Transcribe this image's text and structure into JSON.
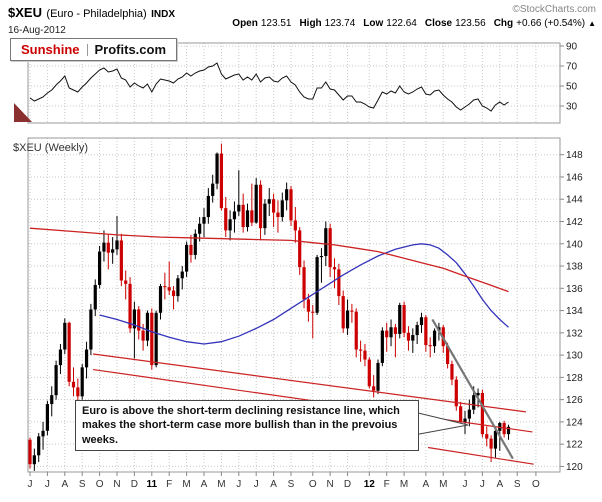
{
  "header": {
    "symbol": "$XEU",
    "name": "(Euro - Philadelphia)",
    "exchange": "INDX",
    "date": "16-Aug-2012",
    "copyright": "©StockCharts.com",
    "stats": [
      {
        "label": "Open",
        "value": "123.51"
      },
      {
        "label": "High",
        "value": "123.74"
      },
      {
        "label": "Low",
        "value": "122.64"
      },
      {
        "label": "Close",
        "value": "123.56"
      },
      {
        "label": "Chg",
        "value": "+0.66 (+0.54%)"
      }
    ],
    "change_arrow": "▲"
  },
  "logo": {
    "part1": "Sunshine",
    "part2": "Profits.com"
  },
  "annotation": {
    "text": "Euro is above the short-term declining resistance line, which makes the short-term case more bullish than in the prevoius weeks."
  },
  "colors": {
    "accent_red": "#cc0000",
    "ma_blue": "#3333bb",
    "ma_red": "#cc2222",
    "trend_gray": "#777777",
    "grid": "#c8c8c8",
    "panel_border": "#999999",
    "rsi_line": "#111111",
    "marker_maroon": "#8b3030"
  },
  "chart_data": [
    {
      "name": "indicator_panel",
      "type": "line",
      "ylim": [
        13,
        93
      ],
      "yticks": [
        90,
        70,
        50,
        30
      ],
      "line_color": "#111111",
      "marker": {
        "shape": "triangle",
        "color": "#8b3030",
        "position": "bottom-left"
      },
      "values": [
        38,
        35,
        37,
        39,
        43,
        46,
        51,
        55,
        60,
        48,
        46,
        44,
        49,
        53,
        58,
        62,
        66,
        68,
        64,
        65,
        67,
        58,
        56,
        49,
        53,
        50,
        48,
        52,
        44,
        52,
        57,
        56,
        55,
        53,
        57,
        59,
        63,
        60,
        63,
        65,
        66,
        69,
        70,
        73,
        62,
        57,
        59,
        61,
        62,
        56,
        59,
        56,
        62,
        54,
        58,
        59,
        55,
        54,
        58,
        60,
        54,
        51,
        44,
        39,
        37,
        37,
        48,
        48,
        54,
        47,
        46,
        41,
        36,
        40,
        40,
        34,
        34,
        32,
        29,
        28,
        36,
        44,
        42,
        45,
        43,
        50,
        44,
        42,
        44,
        47,
        49,
        42,
        41,
        45,
        46,
        41,
        37,
        34,
        29,
        26,
        29,
        32,
        36,
        37,
        30,
        28,
        25,
        31,
        34,
        31,
        34
      ]
    },
    {
      "name": "price_panel",
      "type": "candlestick",
      "title": "$XEU (Weekly)",
      "ylim": [
        119.5,
        149.5
      ],
      "yticks": [
        148,
        146,
        144,
        142,
        140,
        138,
        136,
        134,
        132,
        130,
        128,
        126,
        124,
        122,
        120
      ],
      "up_color": "#000000",
      "down_color": "#cc0000",
      "candles": [
        [
          122.4,
          122.6,
          119.8,
          120.2
        ],
        [
          120.2,
          121.6,
          119.6,
          121.0
        ],
        [
          121.0,
          123.0,
          120.4,
          122.7
        ],
        [
          122.7,
          124.0,
          121.5,
          123.2
        ],
        [
          123.2,
          125.9,
          122.8,
          125.6
        ],
        [
          125.6,
          127.2,
          124.5,
          126.4
        ],
        [
          126.4,
          129.5,
          126.0,
          129.1
        ],
        [
          129.1,
          131.0,
          128.3,
          130.5
        ],
        [
          130.5,
          133.3,
          130.1,
          132.9
        ],
        [
          132.9,
          133.0,
          127.2,
          127.6
        ],
        [
          127.6,
          128.9,
          126.3,
          127.1
        ],
        [
          127.1,
          127.9,
          125.8,
          126.3
        ],
        [
          126.3,
          129.2,
          126.0,
          128.9
        ],
        [
          128.9,
          131.2,
          127.9,
          130.5
        ],
        [
          130.5,
          134.6,
          130.0,
          134.1
        ],
        [
          134.1,
          136.8,
          133.5,
          136.3
        ],
        [
          136.3,
          139.8,
          136.0,
          139.3
        ],
        [
          139.3,
          141.2,
          138.4,
          140.1
        ],
        [
          140.1,
          140.8,
          137.7,
          139.2
        ],
        [
          139.2,
          140.6,
          138.2,
          139.5
        ],
        [
          139.5,
          142.5,
          139.0,
          140.3
        ],
        [
          140.3,
          140.9,
          136.2,
          136.7
        ],
        [
          136.7,
          137.6,
          135.0,
          136.4
        ],
        [
          136.4,
          137.0,
          132.0,
          132.4
        ],
        [
          132.4,
          134.8,
          129.7,
          134.1
        ],
        [
          134.1,
          134.4,
          131.4,
          132.2
        ],
        [
          132.2,
          132.8,
          130.4,
          131.3
        ],
        [
          131.3,
          134.0,
          130.8,
          133.8
        ],
        [
          133.8,
          134.2,
          128.7,
          129.1
        ],
        [
          129.1,
          134.0,
          128.9,
          133.8
        ],
        [
          133.8,
          136.4,
          133.2,
          136.2
        ],
        [
          136.2,
          137.4,
          135.0,
          136.1
        ],
        [
          136.1,
          138.4,
          135.4,
          135.8
        ],
        [
          135.8,
          136.2,
          134.1,
          135.3
        ],
        [
          135.3,
          137.2,
          134.8,
          136.9
        ],
        [
          136.9,
          138.0,
          135.9,
          137.5
        ],
        [
          137.5,
          140.2,
          137.0,
          139.9
        ],
        [
          139.9,
          140.8,
          138.3,
          139.0
        ],
        [
          139.0,
          141.3,
          138.6,
          140.9
        ],
        [
          140.9,
          142.4,
          140.2,
          141.8
        ],
        [
          141.8,
          143.2,
          140.6,
          142.4
        ],
        [
          142.4,
          145.0,
          141.8,
          144.3
        ],
        [
          144.3,
          146.2,
          143.7,
          145.4
        ],
        [
          145.4,
          148.2,
          144.9,
          148.1
        ],
        [
          148.1,
          149.0,
          143.0,
          143.2
        ],
        [
          143.2,
          144.2,
          140.6,
          141.2
        ],
        [
          141.2,
          143.0,
          140.3,
          142.2
        ],
        [
          142.2,
          143.8,
          141.0,
          142.9
        ],
        [
          142.9,
          146.6,
          142.5,
          143.5
        ],
        [
          143.5,
          144.5,
          141.0,
          141.5
        ],
        [
          141.5,
          143.6,
          141.1,
          143.0
        ],
        [
          143.0,
          145.4,
          141.6,
          141.9
        ],
        [
          141.9,
          145.9,
          141.8,
          145.3
        ],
        [
          145.3,
          145.7,
          140.3,
          141.4
        ],
        [
          141.4,
          144.0,
          140.8,
          143.6
        ],
        [
          143.6,
          145.0,
          142.5,
          144.0
        ],
        [
          144.0,
          144.5,
          141.5,
          142.8
        ],
        [
          142.8,
          143.9,
          141.0,
          142.4
        ],
        [
          142.4,
          144.6,
          142.0,
          143.9
        ],
        [
          143.9,
          145.5,
          143.0,
          144.9
        ],
        [
          144.9,
          145.2,
          141.6,
          142.1
        ],
        [
          142.1,
          143.3,
          140.1,
          141.2
        ],
        [
          141.2,
          141.5,
          137.2,
          137.9
        ],
        [
          137.9,
          138.5,
          134.2,
          135.0
        ],
        [
          135.0,
          135.5,
          133.0,
          133.9
        ],
        [
          133.9,
          134.5,
          131.5,
          133.8
        ],
        [
          133.8,
          139.0,
          133.6,
          138.8
        ],
        [
          138.8,
          139.6,
          136.5,
          138.9
        ],
        [
          138.9,
          142.0,
          138.0,
          141.4
        ],
        [
          141.4,
          141.8,
          137.0,
          137.9
        ],
        [
          137.9,
          138.7,
          136.0,
          137.7
        ],
        [
          137.7,
          138.2,
          134.5,
          135.3
        ],
        [
          135.3,
          135.8,
          132.0,
          132.4
        ],
        [
          132.4,
          135.0,
          131.8,
          134.0
        ],
        [
          134.0,
          134.6,
          132.9,
          133.9
        ],
        [
          133.9,
          134.2,
          129.8,
          130.5
        ],
        [
          130.5,
          131.3,
          129.4,
          130.4
        ],
        [
          130.4,
          131.0,
          129.0,
          129.6
        ],
        [
          129.6,
          129.8,
          127.0,
          127.2
        ],
        [
          127.2,
          128.2,
          126.2,
          126.8
        ],
        [
          126.8,
          129.6,
          126.5,
          129.3
        ],
        [
          129.3,
          132.5,
          129.0,
          132.2
        ],
        [
          132.2,
          132.9,
          130.3,
          131.6
        ],
        [
          131.6,
          133.2,
          130.8,
          132.5
        ],
        [
          132.5,
          132.8,
          129.8,
          131.9
        ],
        [
          131.9,
          134.7,
          131.5,
          134.5
        ],
        [
          134.5,
          134.8,
          131.6,
          132.0
        ],
        [
          132.0,
          132.6,
          130.4,
          131.3
        ],
        [
          131.3,
          132.4,
          130.2,
          131.8
        ],
        [
          131.8,
          133.0,
          131.0,
          132.7
        ],
        [
          132.7,
          133.8,
          132.0,
          133.4
        ],
        [
          133.4,
          133.6,
          130.3,
          130.9
        ],
        [
          130.9,
          131.6,
          129.8,
          130.8
        ],
        [
          130.8,
          132.4,
          130.2,
          132.2
        ],
        [
          132.2,
          132.9,
          131.3,
          132.5
        ],
        [
          132.5,
          132.7,
          130.2,
          130.8
        ],
        [
          130.8,
          131.1,
          128.8,
          129.2
        ],
        [
          129.2,
          129.5,
          127.3,
          127.8
        ],
        [
          127.8,
          128.1,
          125.0,
          125.4
        ],
        [
          125.4,
          125.8,
          123.6,
          124.0
        ],
        [
          124.0,
          125.0,
          122.9,
          124.3
        ],
        [
          124.3,
          126.0,
          123.6,
          125.1
        ],
        [
          125.1,
          127.2,
          124.7,
          126.4
        ],
        [
          126.4,
          127.0,
          125.3,
          126.6
        ],
        [
          126.6,
          126.9,
          122.6,
          122.9
        ],
        [
          122.9,
          123.6,
          121.8,
          122.5
        ],
        [
          122.5,
          122.8,
          120.4,
          121.6
        ],
        [
          121.6,
          123.4,
          120.8,
          123.2
        ],
        [
          123.2,
          124.0,
          121.4,
          123.9
        ],
        [
          123.9,
          124.1,
          122.6,
          122.9
        ],
        [
          122.9,
          123.74,
          122.4,
          123.56
        ]
      ],
      "ma_blue": [
        [
          16,
          133.6
        ],
        [
          20,
          133.2
        ],
        [
          24,
          132.7
        ],
        [
          28,
          132.1
        ],
        [
          32,
          131.6
        ],
        [
          36,
          131.2
        ],
        [
          40,
          131.0
        ],
        [
          44,
          131.2
        ],
        [
          48,
          131.7
        ],
        [
          52,
          132.4
        ],
        [
          56,
          133.2
        ],
        [
          60,
          134.2
        ],
        [
          64,
          135.2
        ],
        [
          68,
          136.2
        ],
        [
          72,
          137.2
        ],
        [
          76,
          138.1
        ],
        [
          80,
          138.9
        ],
        [
          84,
          139.5
        ],
        [
          88,
          139.9
        ],
        [
          90,
          140.0
        ],
        [
          92,
          139.9
        ],
        [
          94,
          139.6
        ],
        [
          96,
          139.0
        ],
        [
          98,
          138.3
        ],
        [
          100,
          137.3
        ],
        [
          102,
          136.2
        ],
        [
          104,
          135.0
        ],
        [
          106,
          134.0
        ],
        [
          108,
          133.2
        ],
        [
          110,
          132.5
        ]
      ],
      "ma_red": [
        [
          0,
          141.4
        ],
        [
          10,
          141.1
        ],
        [
          20,
          140.8
        ],
        [
          30,
          140.6
        ],
        [
          40,
          140.5
        ],
        [
          50,
          140.4
        ],
        [
          60,
          140.3
        ],
        [
          65,
          140.1
        ],
        [
          70,
          139.9
        ],
        [
          75,
          139.6
        ],
        [
          80,
          139.3
        ],
        [
          85,
          138.8
        ],
        [
          90,
          138.3
        ],
        [
          95,
          137.8
        ],
        [
          100,
          137.1
        ],
        [
          105,
          136.4
        ],
        [
          110,
          135.7
        ]
      ],
      "trendlines": [
        {
          "name": "long-term-resistance-upper",
          "from": [
            14.5,
            130.1
          ],
          "to": [
            114,
            124.9
          ],
          "color": "#cc2222",
          "width": 1.2
        },
        {
          "name": "long-term-resistance-lower",
          "from": [
            14.5,
            128.7
          ],
          "to": [
            115.5,
            123.1
          ],
          "color": "#cc2222",
          "width": 1.2
        },
        {
          "name": "short-term-support",
          "from": [
            91.5,
            121.7
          ],
          "to": [
            115.8,
            120.2
          ],
          "color": "#cc2222",
          "width": 1.2
        },
        {
          "name": "short-term-declining-resistance",
          "from": [
            92.5,
            133.2
          ],
          "to": [
            111,
            120.7
          ],
          "color": "#777777",
          "width": 2.2
        }
      ],
      "months": [
        {
          "label": "J",
          "w": 0
        },
        {
          "label": "J",
          "w": 4
        },
        {
          "label": "A",
          "w": 8
        },
        {
          "label": "S",
          "w": 12
        },
        {
          "label": "O",
          "w": 16
        },
        {
          "label": "N",
          "w": 20
        },
        {
          "label": "D",
          "w": 24
        },
        {
          "label": "11",
          "w": 28,
          "bold": true
        },
        {
          "label": "F",
          "w": 32
        },
        {
          "label": "M",
          "w": 36
        },
        {
          "label": "A",
          "w": 40
        },
        {
          "label": "M",
          "w": 44
        },
        {
          "label": "J",
          "w": 48
        },
        {
          "label": "J",
          "w": 52
        },
        {
          "label": "A",
          "w": 56
        },
        {
          "label": "S",
          "w": 60
        },
        {
          "label": "O",
          "w": 65
        },
        {
          "label": "N",
          "w": 69
        },
        {
          "label": "D",
          "w": 73
        },
        {
          "label": "12",
          "w": 78,
          "bold": true
        },
        {
          "label": "F",
          "w": 82
        },
        {
          "label": "M",
          "w": 86
        },
        {
          "label": "A",
          "w": 91
        },
        {
          "label": "M",
          "w": 95
        },
        {
          "label": "J",
          "w": 100
        },
        {
          "label": "J",
          "w": 104
        },
        {
          "label": "A",
          "w": 108
        },
        {
          "label": "S",
          "w": 112
        },
        {
          "label": "O",
          "w": 116.3
        }
      ]
    }
  ]
}
